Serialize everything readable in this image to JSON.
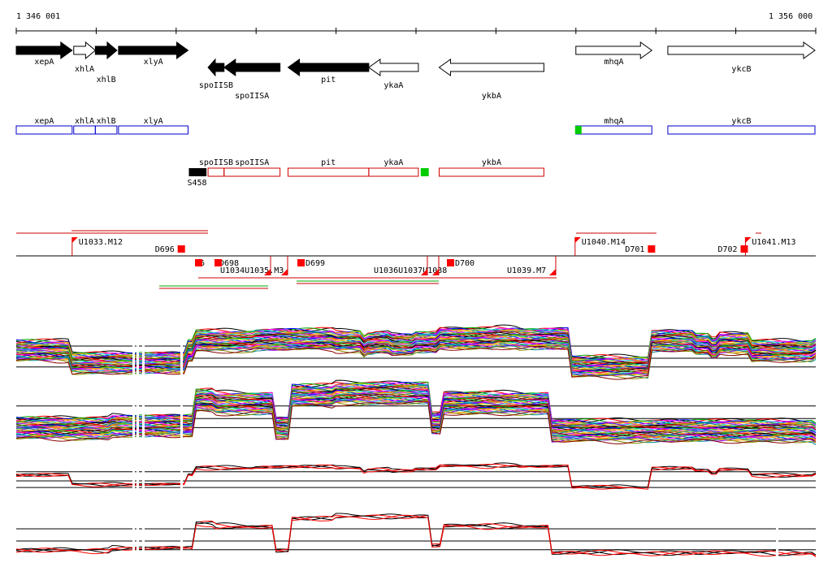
{
  "coordinates": {
    "start_label": "1 346 001",
    "end_label": "1 356 000",
    "start": 1346001,
    "end": 1356000
  },
  "genes": [
    {
      "name": "xepA",
      "start": 1346001,
      "end": 1346700,
      "strand": "+",
      "filled": true,
      "show_name": "xepA"
    },
    {
      "name": "xhlA",
      "start": 1346720,
      "end": 1346990,
      "strand": "+",
      "filled": false,
      "show_name": "xhlA"
    },
    {
      "name": "xhlB",
      "start": 1346990,
      "end": 1347260,
      "strand": "+",
      "filled": true,
      "show_name": "xhlB"
    },
    {
      "name": "xlyA",
      "start": 1347280,
      "end": 1348150,
      "strand": "+",
      "filled": true,
      "show_name": "xlyA"
    },
    {
      "name": "spoIISB",
      "start": 1348400,
      "end": 1348600,
      "strand": "-",
      "filled": true,
      "show_name": "spoIISB"
    },
    {
      "name": "spoIISA",
      "start": 1348600,
      "end": 1349300,
      "strand": "-",
      "filled": true,
      "show_name": "spoIISA"
    },
    {
      "name": "pit",
      "start": 1349400,
      "end": 1350410,
      "strand": "-",
      "filled": true,
      "show_name": "pit"
    },
    {
      "name": "ykaA",
      "start": 1350410,
      "end": 1351030,
      "strand": "-",
      "filled": false,
      "show_name": "ykaA"
    },
    {
      "name": "ykbA",
      "start": 1351290,
      "end": 1352600,
      "strand": "-",
      "filled": false,
      "show_name": "ykbA"
    },
    {
      "name": "mhqA",
      "start": 1353000,
      "end": 1353950,
      "strand": "+",
      "filled": false,
      "show_name": "mhqA"
    },
    {
      "name": "ykcB",
      "start": 1354150,
      "end": 1355990,
      "strand": "+",
      "filled": false,
      "show_name": "ykcB"
    }
  ],
  "operons_plus": [
    {
      "label": "xepA",
      "start": 1346001,
      "end": 1346700
    },
    {
      "label": "xhlA",
      "start": 1346720,
      "end": 1346990
    },
    {
      "label": "xhlB",
      "start": 1346990,
      "end": 1347260
    },
    {
      "label": "xlyA",
      "start": 1347280,
      "end": 1348150
    },
    {
      "label": "mhqA",
      "start": 1353000,
      "end": 1353950
    },
    {
      "label": "ykcB",
      "start": 1354150,
      "end": 1355990
    }
  ],
  "operons_minus": [
    {
      "label": "spoIISB",
      "start": 1348400,
      "end": 1348600
    },
    {
      "label": "spoIISA",
      "start": 1348600,
      "end": 1349300
    },
    {
      "label": "pit",
      "start": 1349400,
      "end": 1350410
    },
    {
      "label": "ykaA",
      "start": 1350410,
      "end": 1351030
    },
    {
      "label": "ykbA",
      "start": 1351290,
      "end": 1352600
    }
  ],
  "promoters": [
    {
      "label": "S458",
      "start": 1348160,
      "end": 1348380,
      "kind": "black"
    },
    {
      "label": "",
      "start": 1351060,
      "end": 1351160,
      "kind": "green"
    },
    {
      "label": "",
      "start": 1352990,
      "end": 1353060,
      "kind": "green"
    }
  ],
  "segments_plus": [
    {
      "label": "U1033.M12",
      "start": 1346700
    },
    {
      "label": "U1040.M14",
      "start": 1352990
    },
    {
      "label": "U1041.M13",
      "start": 1355120
    }
  ],
  "segments_minus": [
    {
      "label": "U1034",
      "start": 1348400
    },
    {
      "label": "U1035.M3",
      "start": 1349350
    },
    {
      "label": "U1036",
      "start": 1350500
    },
    {
      "label": "U1037",
      "start": 1351100
    },
    {
      "label": "U1038",
      "start": 1351160
    },
    {
      "label": "U1039.M7",
      "start": 1352600
    }
  ],
  "downshifts_plus": [
    {
      "label": "D696",
      "start": 1348020
    },
    {
      "label": "D701",
      "start": 1353900
    },
    {
      "label": "D702",
      "start": 1355060
    }
  ],
  "downshifts_minus": [
    {
      "label": "D697",
      "start": 1348200
    },
    {
      "label": "D698",
      "start": 1348450
    },
    {
      "label": "D699",
      "start": 1349450
    },
    {
      "label": "D700",
      "start": 1351300
    }
  ],
  "minus_small_labels": [
    "D6",
    "D698",
    "U1034U1035.M3",
    "D699",
    "U1036U1037U1038",
    "D700",
    "U1039.M7"
  ],
  "plus_labels": [
    "U1033.M12",
    "D696",
    "U1040.M14",
    "D701",
    "D702",
    "U1041.M13"
  ],
  "expression_bands": [
    {
      "kind": "many",
      "levels_plus": [
        [
          0,
          0.55
        ],
        [
          6.8,
          0.55
        ],
        [
          6.8,
          0.3
        ],
        [
          21.4,
          0.3
        ],
        [
          21.4,
          0.55
        ],
        [
          22.4,
          0.55
        ],
        [
          22.4,
          0.75
        ],
        [
          28,
          0.75
        ],
        [
          30,
          0.78
        ],
        [
          40,
          0.75
        ],
        [
          43.2,
          0.65
        ],
        [
          44,
          0.7
        ],
        [
          45,
          0.72
        ],
        [
          47,
          0.68
        ],
        [
          50,
          0.72
        ],
        [
          53,
          0.8
        ],
        [
          60,
          0.82
        ],
        [
          63,
          0.8
        ],
        [
          68.8,
          0.8
        ],
        [
          69.5,
          0.22
        ],
        [
          75,
          0.22
        ],
        [
          79.2,
          0.22
        ],
        [
          79.2,
          0.75
        ],
        [
          85,
          0.68
        ],
        [
          87,
          0.6
        ],
        [
          88,
          0.7
        ],
        [
          91,
          0.7
        ],
        [
          92,
          0.55
        ],
        [
          100,
          0.6
        ]
      ]
    }
  ],
  "colors": {
    "gene_outline": "#000000",
    "operon": "#0000cc",
    "operon_minus": "#cc0000",
    "signal": "#ff0000",
    "promoter_green": "#00cc00"
  }
}
